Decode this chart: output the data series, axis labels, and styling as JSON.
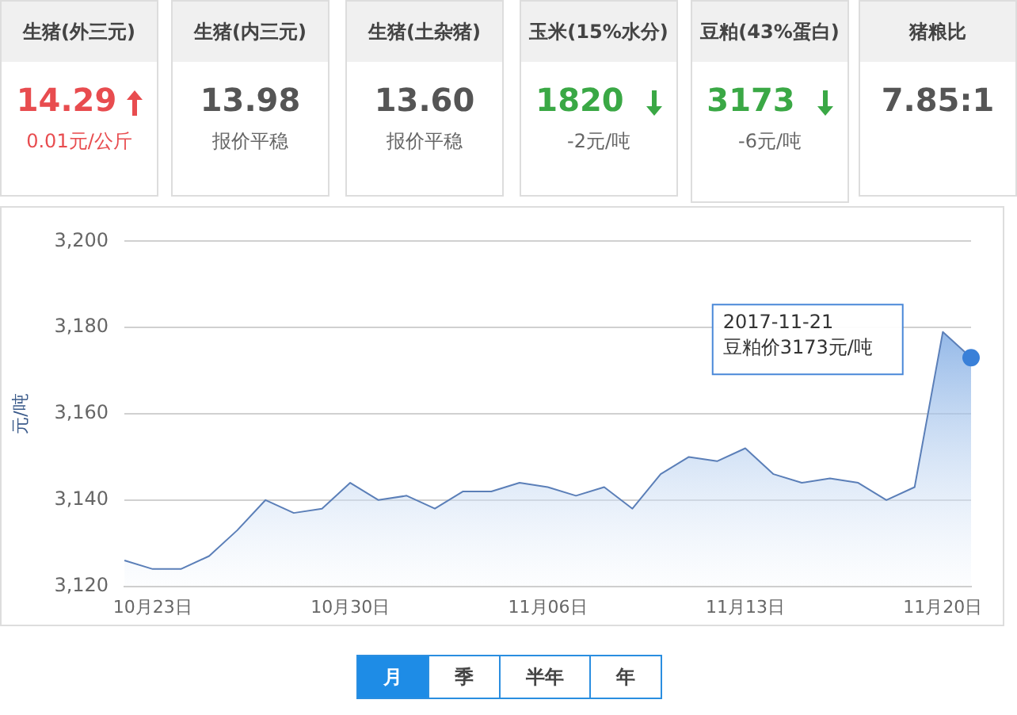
{
  "chart_data": [
    {
      "type": "other",
      "categories": [
        "生猪(外三元)",
        "生猪(内三元)",
        "生猪(土杂猪)",
        "玉米(15%水分)",
        "豆粕(43%蛋白)",
        "猪粮比"
      ],
      "value_labels": [
        "14.29",
        "13.98",
        "13.60",
        "1820",
        "3173",
        "7.85:1"
      ],
      "annotations": [
        "0.01元/公斤",
        "报价平稳",
        "报价平稳",
        "-2元/吨",
        "-6元/吨"
      ]
    },
    {
      "type": "area",
      "ylabel": "元/吨",
      "categories": [
        null,
        "10月23日",
        null,
        null,
        null,
        null,
        null,
        null,
        "10月30日",
        null,
        null,
        null,
        null,
        null,
        null,
        "11月06日",
        null,
        null,
        null,
        null,
        null,
        null,
        "11月13日",
        null,
        null,
        null,
        null,
        null,
        null,
        "11月20日",
        null
      ],
      "series": [
        {
          "color": "#4a88d8",
          "values": [
            3126,
            3124,
            3124,
            3127,
            3133,
            3140,
            3137,
            3138,
            3144,
            3140,
            3141,
            3138,
            3142,
            3142,
            3144,
            3143,
            3141,
            3143,
            3138,
            3146,
            3150,
            3149,
            3152,
            3146,
            3144,
            3145,
            3144,
            3140,
            3143,
            3179,
            3173
          ]
        }
      ],
      "ylim": [
        3120,
        3200
      ],
      "yticks": [
        {
          "value": 3120,
          "label": "3,120"
        },
        {
          "value": 3140,
          "label": "3,140"
        },
        {
          "value": 3160,
          "label": "3,160"
        },
        {
          "value": 3180,
          "label": "3,180"
        },
        {
          "value": 3200,
          "label": "3,200"
        }
      ],
      "grid": "y",
      "legend": false,
      "marker": "none",
      "annotations": [
        "2017-11-21\n豆粕价3173元/吨",
        "月",
        "季",
        "半年",
        "年"
      ]
    }
  ]
}
